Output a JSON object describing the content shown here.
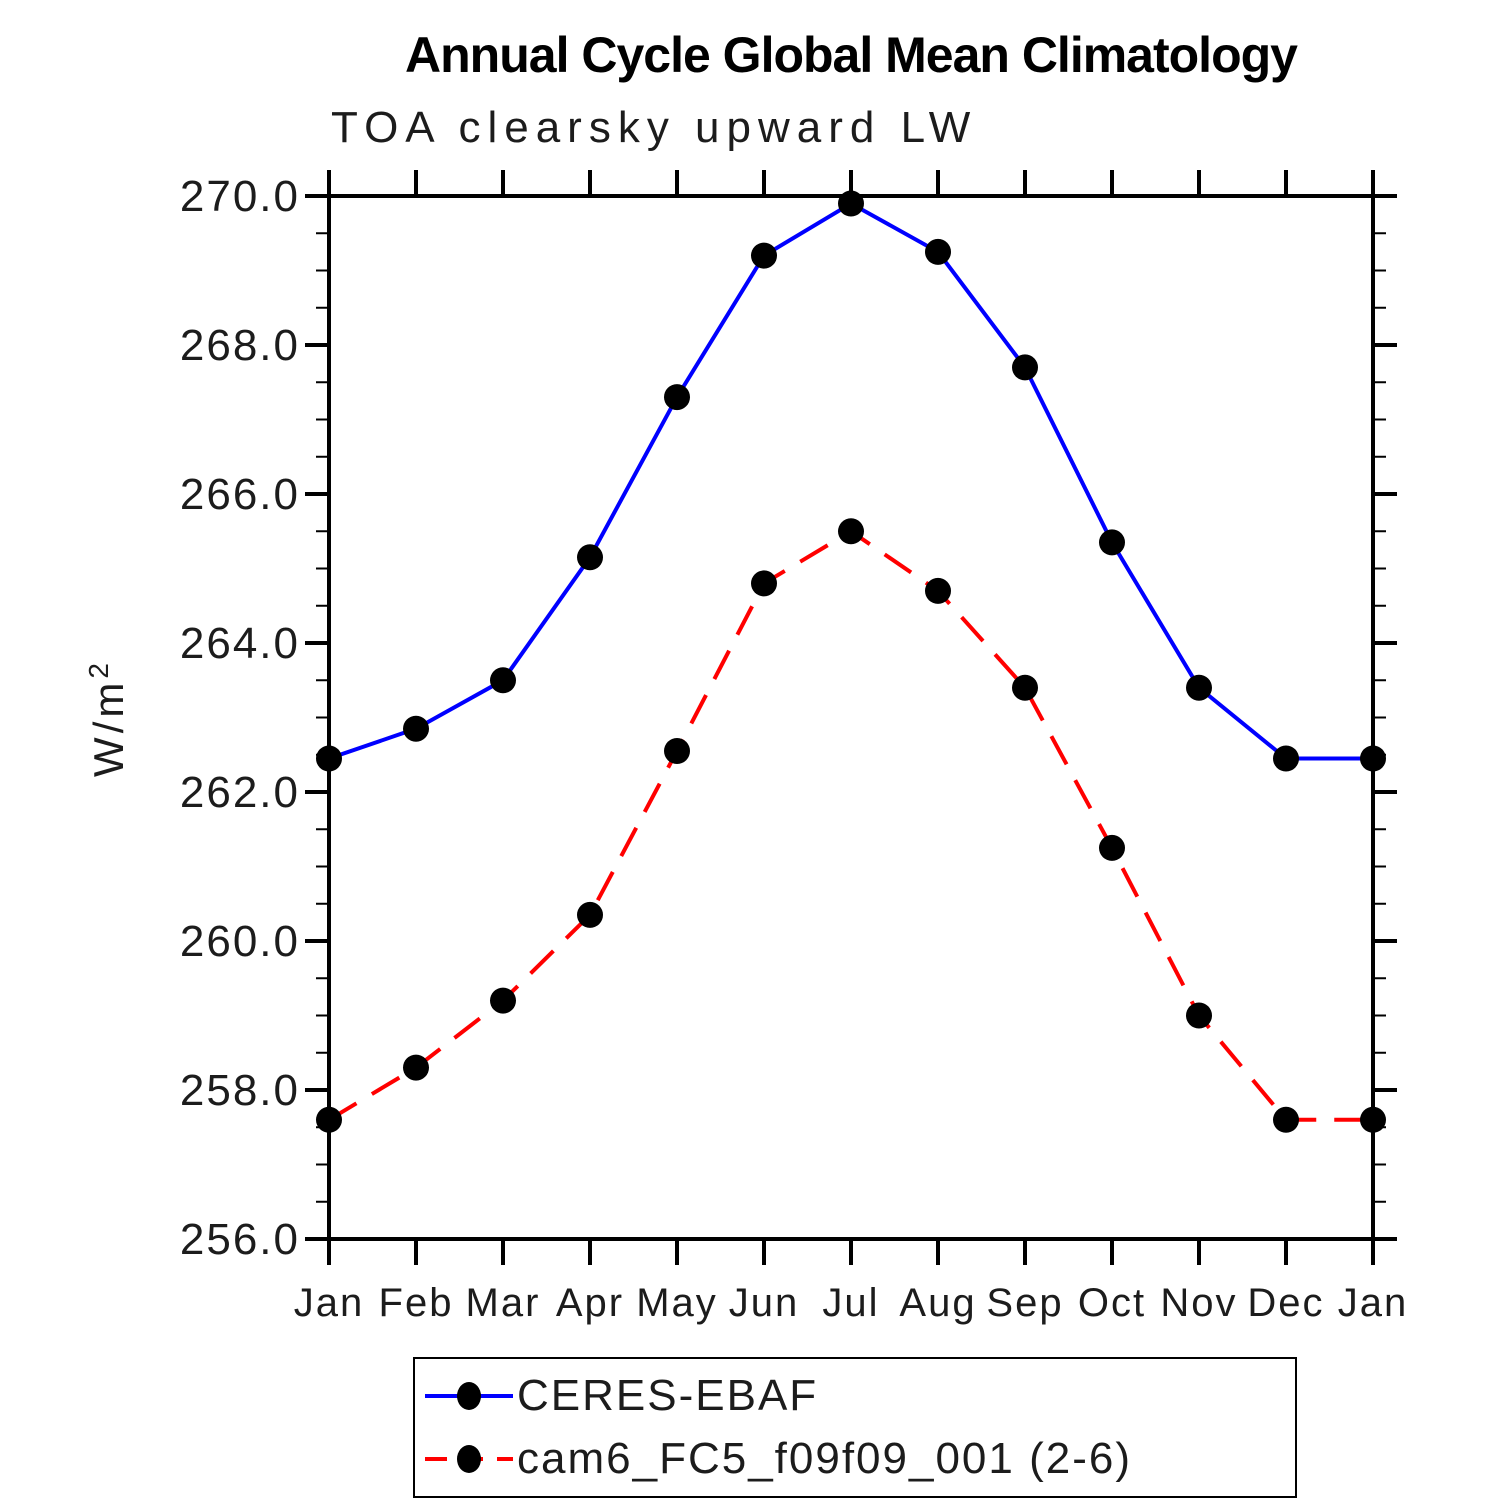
{
  "chart_data": {
    "type": "line",
    "title": "Annual Cycle Global Mean Climatology",
    "subtitle": "TOA clearsky upward LW",
    "ylabel": "W/m²",
    "ylabel_main": "W/m",
    "ylabel_exp": "2",
    "categories": [
      "Jan",
      "Feb",
      "Mar",
      "Apr",
      "May",
      "Jun",
      "Jul",
      "Aug",
      "Sep",
      "Oct",
      "Nov",
      "Dec",
      "Jan"
    ],
    "ylim": [
      256.0,
      270.0
    ],
    "ytick_major": 2.0,
    "ytick_minor": 0.5,
    "ytick_labels": [
      "270.0",
      "268.0",
      "266.0",
      "264.0",
      "262.0",
      "260.0",
      "258.0",
      "256.0"
    ],
    "grid": false,
    "legend_position": "bottom",
    "marker_color": "#000000",
    "axis_color": "#000000",
    "series": [
      {
        "name": "CERES-EBAF",
        "color": "#0000ff",
        "style": "solid",
        "values": [
          262.45,
          262.85,
          263.5,
          265.15,
          267.3,
          269.2,
          269.9,
          269.25,
          267.7,
          265.35,
          263.4,
          262.45,
          262.45
        ]
      },
      {
        "name": "cam6_FC5_f09f09_001 (2-6)",
        "color": "#ff0000",
        "style": "dashed",
        "values": [
          257.6,
          258.3,
          259.2,
          260.35,
          262.55,
          264.8,
          265.5,
          264.7,
          263.4,
          261.25,
          259.0,
          257.6,
          257.6
        ]
      }
    ]
  }
}
